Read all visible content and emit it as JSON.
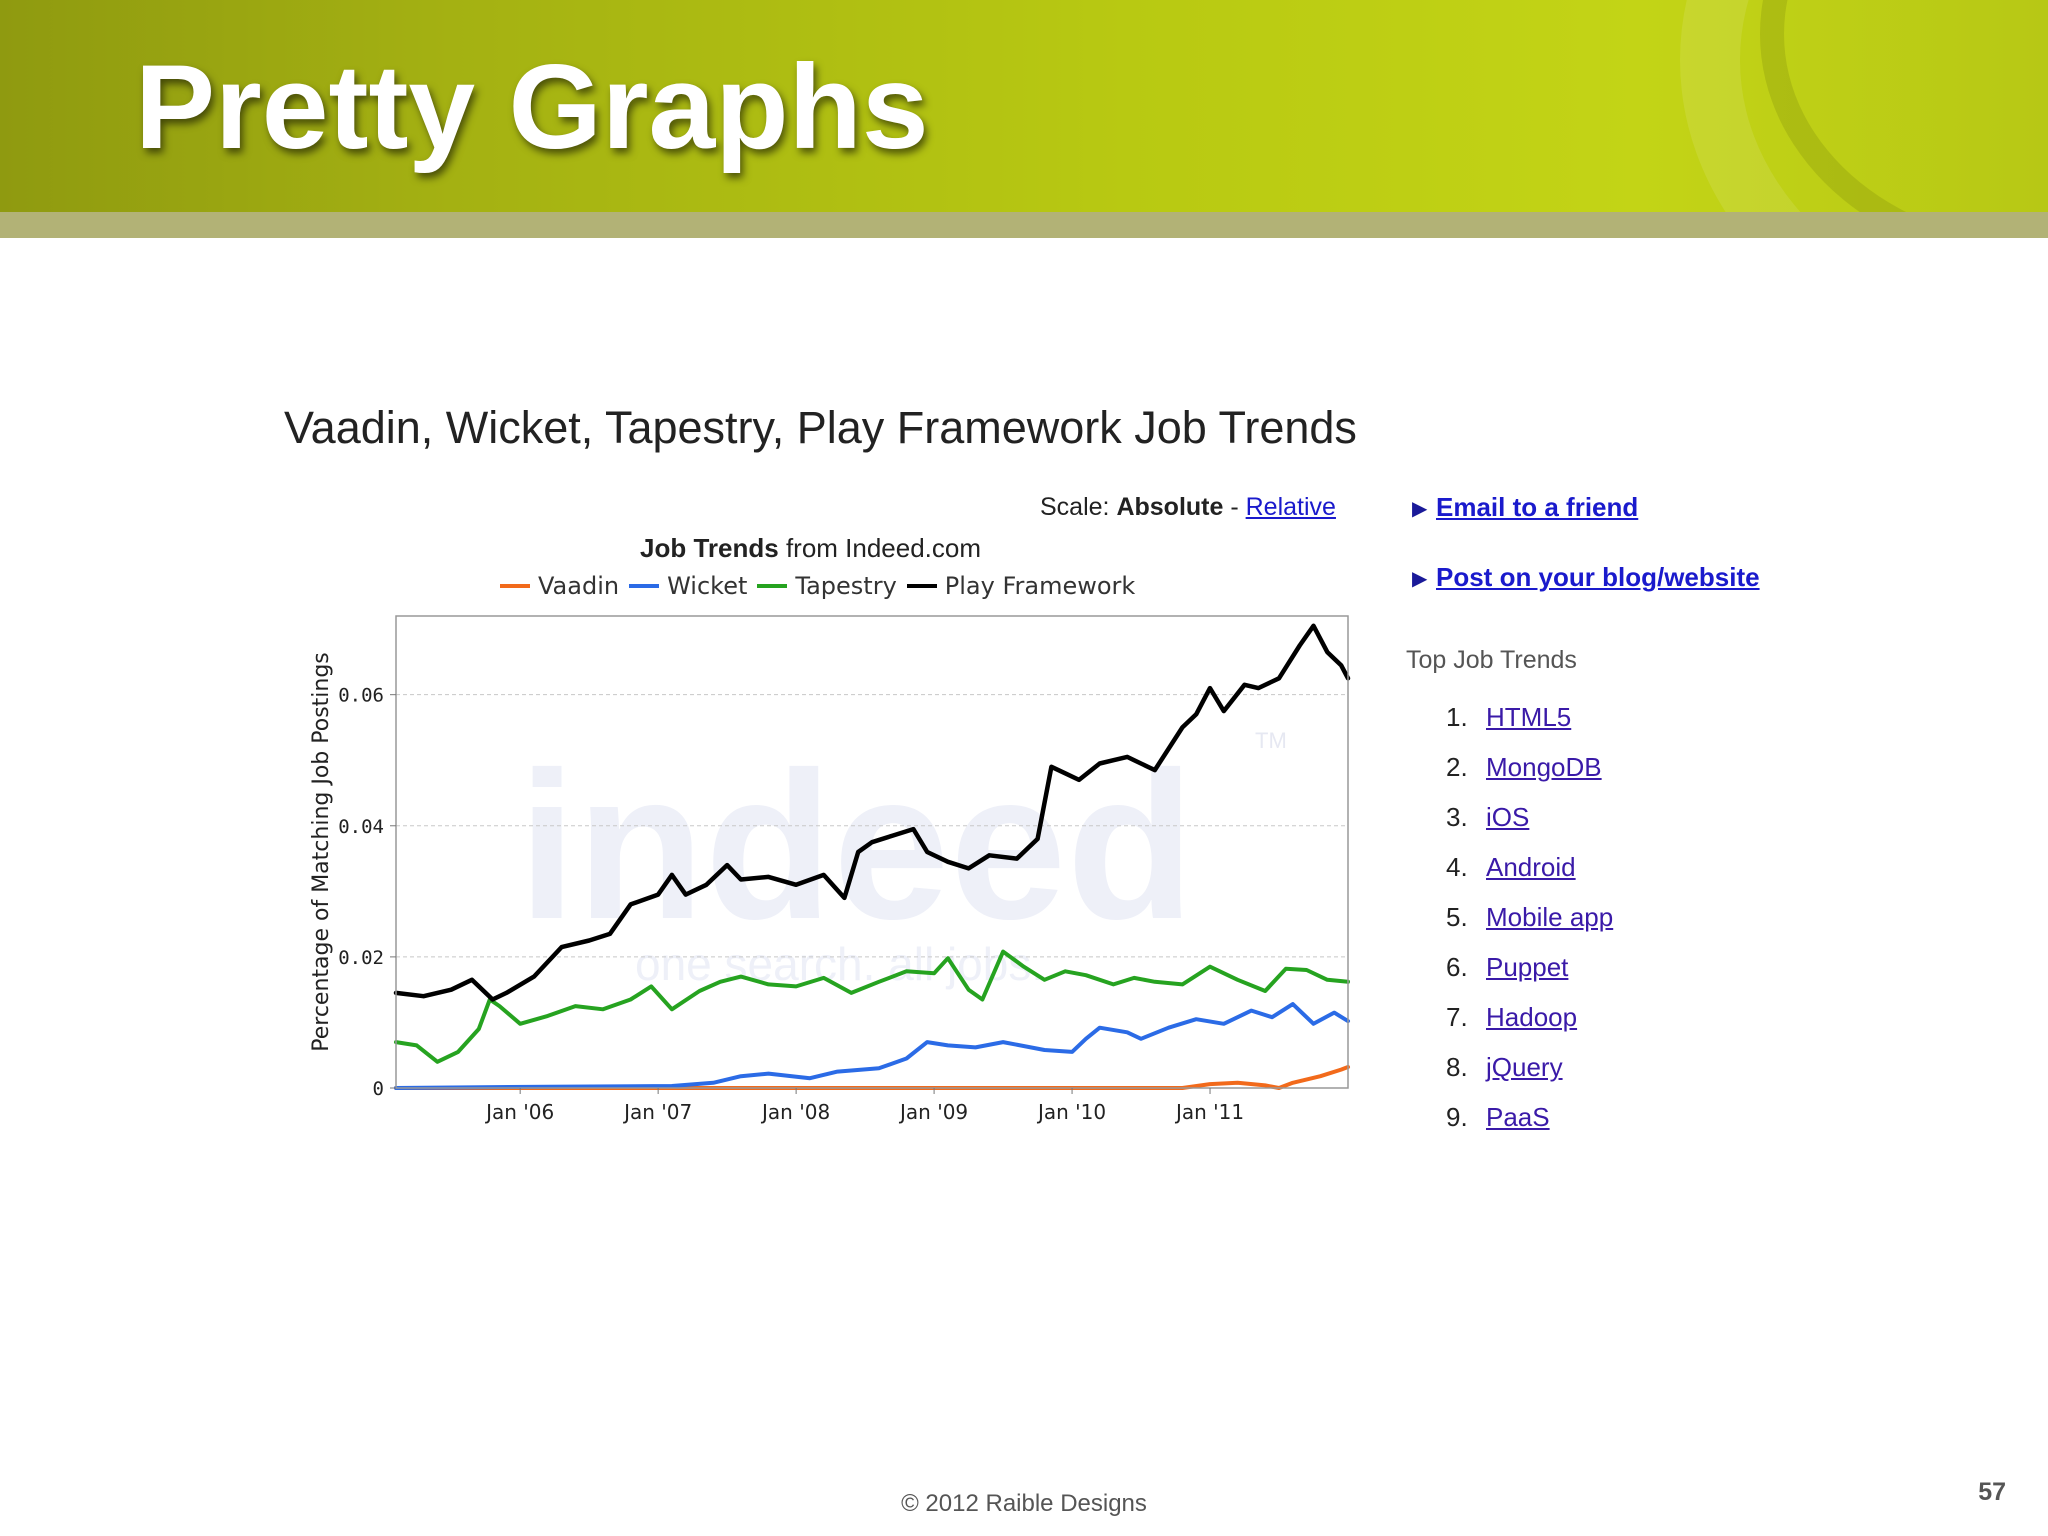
{
  "slide": {
    "title": "Pretty Graphs",
    "footer": "© 2012 Raible Designs",
    "page_number": "57"
  },
  "chart_heading": "Vaadin, Wicket, Tapestry, Play Framework Job Trends",
  "scale": {
    "label": "Scale:",
    "absolute": "Absolute",
    "separator": "-",
    "relative": "Relative"
  },
  "sub_title": {
    "bold": "Job Trends",
    "rest": "from Indeed.com"
  },
  "sidebar": {
    "email_link": "Email to a friend",
    "post_link": "Post on your blog/website",
    "top_trends_title": "Top Job Trends",
    "top_trends": [
      {
        "num": "1.",
        "label": "HTML5"
      },
      {
        "num": "2.",
        "label": "MongoDB"
      },
      {
        "num": "3.",
        "label": "iOS"
      },
      {
        "num": "4.",
        "label": "Android"
      },
      {
        "num": "5.",
        "label": "Mobile app"
      },
      {
        "num": "6.",
        "label": "Puppet"
      },
      {
        "num": "7.",
        "label": "Hadoop"
      },
      {
        "num": "8.",
        "label": "jQuery"
      },
      {
        "num": "9.",
        "label": "PaaS"
      }
    ]
  },
  "watermark": {
    "brand": "indeed",
    "tm": "TM",
    "tagline": "one search. all jobs."
  },
  "colors": {
    "vaadin": "#f26a1b",
    "wicket": "#2b6be6",
    "tapestry": "#26a320",
    "play": "#000000",
    "link": "#1a1acc"
  },
  "chart_data": {
    "type": "line",
    "ylabel": "Percentage of Matching Job Postings",
    "xlabel": "",
    "ylim": [
      0,
      0.072
    ],
    "yticks": [
      0,
      0.02,
      0.04,
      0.06
    ],
    "ytick_labels": [
      "0",
      "0.02",
      "0.04",
      "0.06"
    ],
    "xlim": [
      2005.1,
      2012.0
    ],
    "xticks": [
      2006,
      2007,
      2008,
      2009,
      2010,
      2011
    ],
    "xtick_labels": [
      "Jan '06",
      "Jan '07",
      "Jan '08",
      "Jan '09",
      "Jan '10",
      "Jan '11"
    ],
    "grid": true,
    "legend": "top",
    "series": [
      {
        "name": "Vaadin",
        "color": "#f26a1b",
        "x": [
          2005.1,
          2010.8,
          2011.0,
          2011.2,
          2011.4,
          2011.5,
          2011.6,
          2011.8,
          2011.95,
          2012.0
        ],
        "y": [
          0,
          0,
          0.0006,
          0.0008,
          0.0004,
          0,
          0.0008,
          0.0018,
          0.0028,
          0.0032
        ]
      },
      {
        "name": "Wicket",
        "color": "#2b6be6",
        "x": [
          2005.1,
          2006.2,
          2007.1,
          2007.4,
          2007.6,
          2007.8,
          2008.1,
          2008.3,
          2008.6,
          2008.8,
          2008.95,
          2009.1,
          2009.3,
          2009.5,
          2009.8,
          2010.0,
          2010.1,
          2010.2,
          2010.4,
          2010.5,
          2010.7,
          2010.9,
          2011.1,
          2011.3,
          2011.45,
          2011.6,
          2011.75,
          2011.9,
          2012.0
        ],
        "y": [
          0,
          0.0002,
          0.0003,
          0.0008,
          0.0018,
          0.0022,
          0.0015,
          0.0025,
          0.003,
          0.0045,
          0.007,
          0.0065,
          0.0062,
          0.007,
          0.0058,
          0.0055,
          0.0075,
          0.0092,
          0.0085,
          0.0075,
          0.0092,
          0.0105,
          0.0098,
          0.0118,
          0.0108,
          0.0128,
          0.0098,
          0.0115,
          0.0102
        ]
      },
      {
        "name": "Tapestry",
        "color": "#26a320",
        "x": [
          2005.1,
          2005.25,
          2005.4,
          2005.55,
          2005.7,
          2005.78,
          2005.85,
          2006.0,
          2006.2,
          2006.4,
          2006.6,
          2006.8,
          2006.95,
          2007.1,
          2007.3,
          2007.45,
          2007.6,
          2007.8,
          2008.0,
          2008.2,
          2008.4,
          2008.6,
          2008.8,
          2009.0,
          2009.1,
          2009.25,
          2009.35,
          2009.5,
          2009.65,
          2009.8,
          2009.95,
          2010.1,
          2010.3,
          2010.45,
          2010.6,
          2010.8,
          2011.0,
          2011.2,
          2011.4,
          2011.55,
          2011.7,
          2011.85,
          2012.0
        ],
        "y": [
          0.007,
          0.0065,
          0.004,
          0.0055,
          0.009,
          0.0135,
          0.0125,
          0.0098,
          0.011,
          0.0125,
          0.012,
          0.0135,
          0.0155,
          0.012,
          0.0148,
          0.0162,
          0.017,
          0.0158,
          0.0155,
          0.0168,
          0.0145,
          0.0162,
          0.0178,
          0.0175,
          0.0198,
          0.015,
          0.0135,
          0.0208,
          0.0185,
          0.0165,
          0.0178,
          0.0172,
          0.0158,
          0.0168,
          0.0162,
          0.0158,
          0.0185,
          0.0165,
          0.0148,
          0.0182,
          0.018,
          0.0165,
          0.0162
        ]
      },
      {
        "name": "Play Framework",
        "color": "#000000",
        "x": [
          2005.1,
          2005.3,
          2005.5,
          2005.65,
          2005.8,
          2005.9,
          2006.1,
          2006.3,
          2006.5,
          2006.65,
          2006.8,
          2007.0,
          2007.1,
          2007.2,
          2007.35,
          2007.5,
          2007.6,
          2007.8,
          2008.0,
          2008.2,
          2008.35,
          2008.45,
          2008.55,
          2008.7,
          2008.85,
          2008.95,
          2009.1,
          2009.25,
          2009.4,
          2009.6,
          2009.75,
          2009.85,
          2009.95,
          2010.05,
          2010.2,
          2010.4,
          2010.6,
          2010.8,
          2010.9,
          2011.0,
          2011.1,
          2011.25,
          2011.35,
          2011.5,
          2011.65,
          2011.75,
          2011.85,
          2011.95,
          2012.0
        ],
        "y": [
          0.0145,
          0.014,
          0.015,
          0.0165,
          0.0135,
          0.0145,
          0.017,
          0.0215,
          0.0225,
          0.0235,
          0.028,
          0.0295,
          0.0325,
          0.0295,
          0.031,
          0.034,
          0.0318,
          0.0322,
          0.031,
          0.0325,
          0.029,
          0.036,
          0.0375,
          0.0385,
          0.0395,
          0.036,
          0.0345,
          0.0335,
          0.0355,
          0.035,
          0.038,
          0.049,
          0.048,
          0.047,
          0.0495,
          0.0505,
          0.0485,
          0.055,
          0.057,
          0.061,
          0.0575,
          0.0615,
          0.061,
          0.0625,
          0.0675,
          0.0705,
          0.0665,
          0.0645,
          0.0625
        ]
      }
    ]
  }
}
